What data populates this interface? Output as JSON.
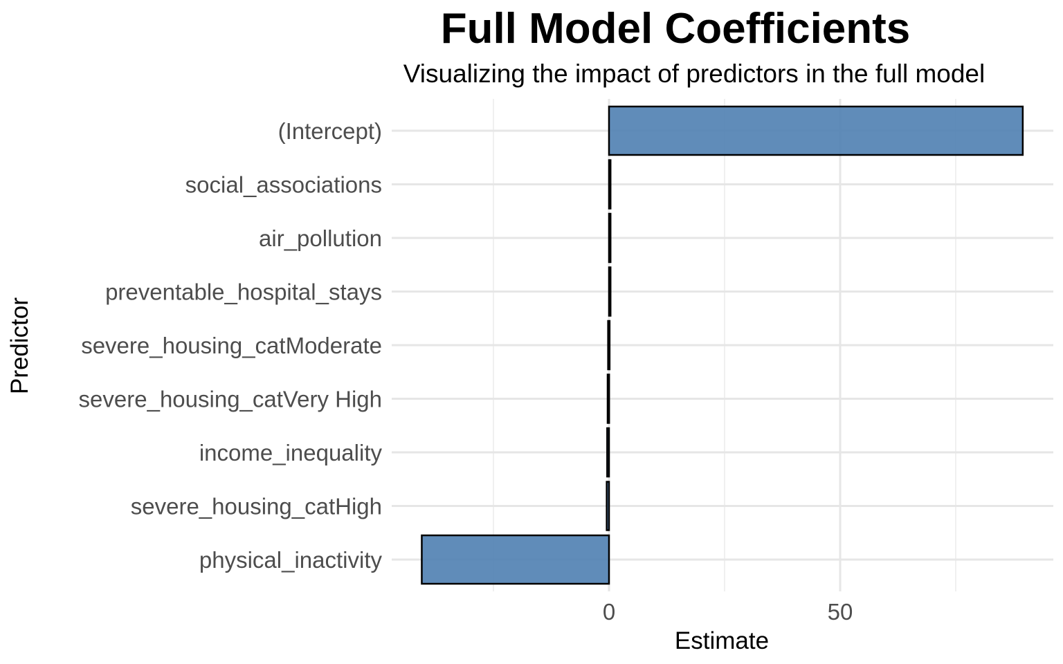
{
  "chart_data": {
    "type": "bar",
    "orientation": "horizontal",
    "title": "Full Model Coefficients",
    "subtitle": "Visualizing the impact of predictors in the full model",
    "xlabel": "Estimate",
    "ylabel": "Predictor",
    "categories": [
      "(Intercept)",
      "social_associations",
      "air_pollution",
      "preventable_hospital_stays",
      "severe_housing_catModerate",
      "severe_housing_catVery High",
      "income_inequality",
      "severe_housing_catHigh",
      "physical_inactivity"
    ],
    "values": [
      89.5,
      0.2,
      0.1,
      0.0,
      -0.2,
      -0.3,
      -0.4,
      -0.5,
      -40.5
    ],
    "xlim": [
      -45,
      96
    ],
    "x_ticks": [
      0,
      50
    ],
    "x_tick_labels": [
      "0",
      "50"
    ],
    "x_minor_ticks": [
      -25,
      25,
      75
    ],
    "grid": true,
    "bar_color": "#4f7fb1",
    "bar_outline": "#000000"
  }
}
